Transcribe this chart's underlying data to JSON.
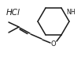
{
  "background_color": "#ffffff",
  "line_color": "#1a1a1a",
  "text_color": "#1a1a1a",
  "hcl_text": "HCl",
  "nh_text": "NH",
  "o_text": "O",
  "fig_width": 1.03,
  "fig_height": 0.92,
  "dpi": 100
}
